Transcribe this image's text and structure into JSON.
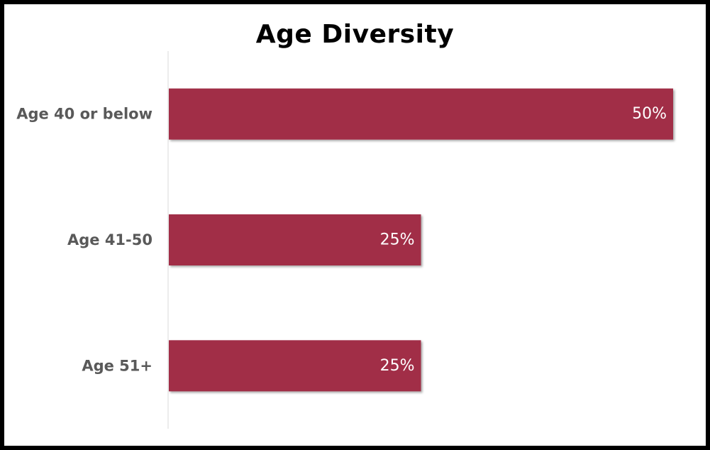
{
  "chart_data": {
    "type": "bar",
    "orientation": "horizontal",
    "title": "Age Diversity",
    "categories": [
      "Age 40 or below",
      "Age 41-50",
      "Age 51+"
    ],
    "values": [
      50,
      25,
      25
    ],
    "value_labels": [
      "50%",
      "25%",
      "25%"
    ],
    "xlim": [
      0,
      50
    ],
    "xlabel": "",
    "ylabel": "",
    "grid": false,
    "legend": "none",
    "bar_color": "#A12D46",
    "border_color": "#000000"
  }
}
